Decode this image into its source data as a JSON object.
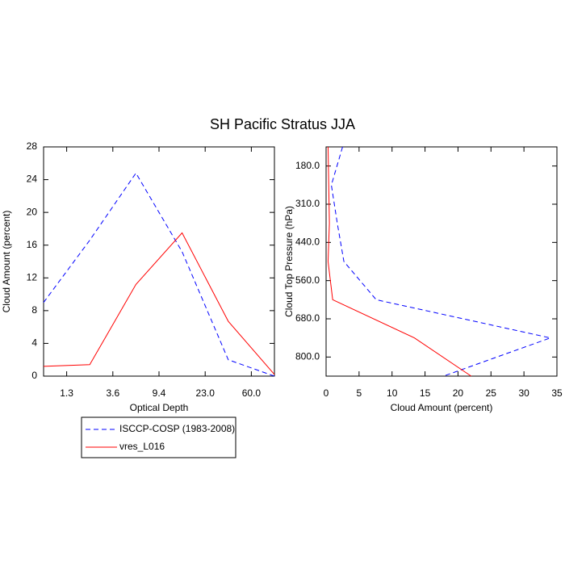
{
  "title": "SH Pacific Stratus JJA",
  "chart_data": [
    {
      "type": "line",
      "orientation": "vertical",
      "x": [
        0,
        1,
        2,
        3,
        4,
        5
      ],
      "xlim": [
        0,
        5
      ],
      "xticks": [
        {
          "value": 0.5,
          "label": "1.3"
        },
        {
          "value": 1.5,
          "label": "3.6"
        },
        {
          "value": 2.5,
          "label": "9.4"
        },
        {
          "value": 3.5,
          "label": "23.0"
        },
        {
          "value": 4.5,
          "label": "60.0"
        }
      ],
      "ylim": [
        0,
        28
      ],
      "yticks": [
        0,
        4,
        8,
        12,
        16,
        20,
        24,
        28
      ],
      "xlabel": "Optical Depth",
      "ylabel": "Cloud Amount (percent)",
      "series": [
        {
          "name": "ISCCP-COSP (1983-2008)",
          "color": "#0000ff",
          "dash": true,
          "values": [
            9.0,
            16.6,
            24.8,
            15.2,
            2.0,
            0
          ]
        },
        {
          "name": "vres_L016",
          "color": "#ff0000",
          "dash": false,
          "values": [
            1.2,
            1.4,
            11.2,
            17.5,
            6.7,
            0.2
          ]
        }
      ]
    },
    {
      "type": "line",
      "orientation": "horizontal",
      "y": [
        0,
        1,
        2,
        3,
        4,
        5,
        6
      ],
      "ylim": [
        6,
        0
      ],
      "yticks": [
        {
          "value": 0.5,
          "label": "180.0"
        },
        {
          "value": 1.5,
          "label": "310.0"
        },
        {
          "value": 2.5,
          "label": "440.0"
        },
        {
          "value": 3.5,
          "label": "560.0"
        },
        {
          "value": 4.5,
          "label": "680.0"
        },
        {
          "value": 5.5,
          "label": "800.0"
        }
      ],
      "xlim": [
        0,
        35
      ],
      "xticks": [
        0,
        5,
        10,
        15,
        20,
        25,
        30,
        35
      ],
      "xlabel": "Cloud Amount (percent)",
      "ylabel": "Cloud Top Pressure (hPa)",
      "series": [
        {
          "color": "#0000ff",
          "dash": true,
          "values": [
            2.5,
            0.8,
            1.7,
            2.7,
            7.6,
            34,
            17.8
          ]
        },
        {
          "color": "#ff0000",
          "dash": false,
          "values": [
            0.3,
            0.4,
            0.5,
            0.3,
            1.0,
            13.4,
            22
          ]
        }
      ]
    }
  ]
}
